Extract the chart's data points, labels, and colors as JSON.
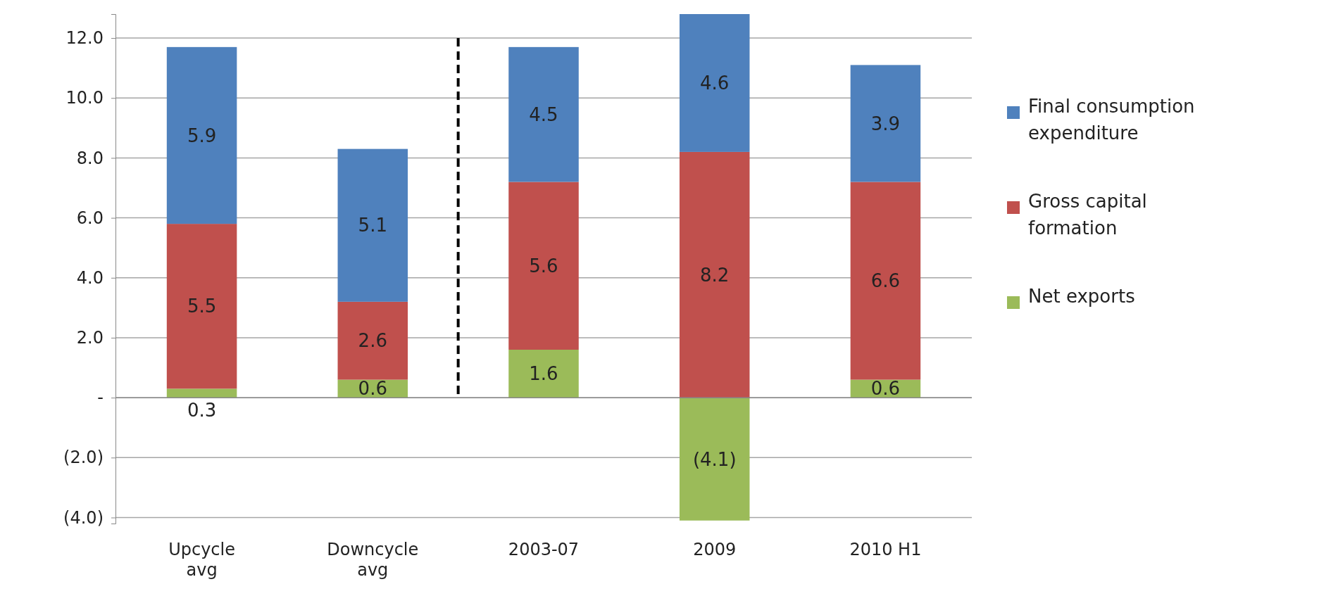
{
  "chart_data": {
    "type": "bar",
    "stacked": true,
    "categories": [
      "Upcycle avg",
      "Downcycle avg",
      "2003-07",
      "2009",
      "2010 H1"
    ],
    "series": [
      {
        "name": "Net exports",
        "color": "#9bbb59",
        "values": [
          0.3,
          0.6,
          1.6,
          -4.1,
          0.6
        ],
        "value_labels": [
          "0.3",
          "0.6",
          "1.6",
          "(4.1)",
          "0.6"
        ]
      },
      {
        "name": "Gross capital formation",
        "color": "#c0504d",
        "values": [
          5.5,
          2.6,
          5.6,
          8.2,
          6.6
        ],
        "value_labels": [
          "5.5",
          "2.6",
          "5.6",
          "8.2",
          "6.6"
        ]
      },
      {
        "name": "Final consumption expenditure",
        "color": "#4f81bd",
        "values": [
          5.9,
          5.1,
          4.5,
          4.6,
          3.9
        ],
        "value_labels": [
          "5.9",
          "5.1",
          "4.5",
          "4.6",
          "3.9"
        ]
      }
    ],
    "ylim": [
      -4.2,
      12.8
    ],
    "yticks": [
      {
        "value": -4,
        "label": "(4.0)"
      },
      {
        "value": -2,
        "label": "(2.0)"
      },
      {
        "value": 0,
        "label": "-"
      },
      {
        "value": 2,
        "label": "2.0"
      },
      {
        "value": 4,
        "label": "4.0"
      },
      {
        "value": 6,
        "label": "6.0"
      },
      {
        "value": 8,
        "label": "8.0"
      },
      {
        "value": 10,
        "label": "10.0"
      },
      {
        "value": 12,
        "label": "12.0"
      }
    ],
    "grid": "y",
    "legend": "right"
  }
}
